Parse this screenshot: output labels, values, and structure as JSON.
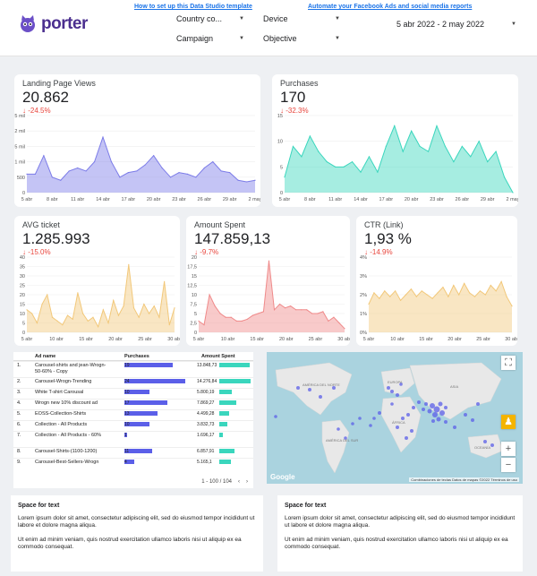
{
  "header": {
    "logo_text": "porter",
    "link_template": "How to set up this Data Studio template",
    "link_automate": "Automate your Facebook Ads and social media reports",
    "filters": [
      {
        "label": "Country co..."
      },
      {
        "label": "Campaign"
      },
      {
        "label": "Device"
      },
      {
        "label": "Objective"
      }
    ],
    "date_range": "5 abr 2022 - 2 may 2022"
  },
  "colors": {
    "purple": "#7c7ce8",
    "teal": "#3ad6bd",
    "orange": "#f2c87a",
    "red": "#ef8a8a",
    "negative": "#e8453c"
  },
  "kpis": {
    "landing": {
      "title": "Landing Page Views",
      "value": "20.862",
      "delta": "-24.5%"
    },
    "purchases": {
      "title": "Purchases",
      "value": "170",
      "delta": "-32.3%"
    },
    "avg_ticket": {
      "title": "AVG ticket",
      "value": "1.285.993",
      "delta": "-15.0%"
    },
    "amount_spent": {
      "title": "Amount Spent",
      "value": "147.859,13",
      "delta": "-9.7%"
    },
    "ctr": {
      "title": "CTR (Link)",
      "value": "1,93 %",
      "delta": "-14.9%"
    }
  },
  "chart_data": [
    {
      "type": "area",
      "series": [
        {
          "name": "Landing Page Views",
          "values": [
            600,
            600,
            1200,
            500,
            400,
            700,
            800,
            700,
            1000,
            1800,
            1000,
            500,
            650,
            700,
            900,
            1200,
            800,
            500,
            650,
            600,
            500,
            800,
            1000,
            700,
            650,
            400,
            350,
            400
          ]
        }
      ],
      "x_labels": [
        "5 abr",
        "8 abr",
        "11 abr",
        "14 abr",
        "17 abr",
        "20 abr",
        "23 abr",
        "26 abr",
        "29 abr",
        "2 may"
      ],
      "y_ticks": [
        "0",
        "500",
        "1 mil",
        "1,5 mil",
        "2 mil",
        "2,5 mil"
      ],
      "ylim": [
        0,
        2500
      ]
    },
    {
      "type": "area",
      "series": [
        {
          "name": "Purchases",
          "values": [
            3,
            9,
            7,
            11,
            8,
            6,
            5,
            5,
            6,
            4,
            7,
            4,
            9,
            13,
            8,
            12,
            9,
            8,
            13,
            9,
            6,
            9,
            7,
            10,
            6,
            8,
            3,
            0
          ]
        }
      ],
      "x_labels": [
        "5 abr",
        "8 abr",
        "11 abr",
        "14 abr",
        "17 abr",
        "20 abr",
        "23 abr",
        "26 abr",
        "29 abr",
        "2 may"
      ],
      "y_ticks": [
        "0",
        "5",
        "10",
        "15"
      ],
      "ylim": [
        0,
        15
      ]
    },
    {
      "type": "area",
      "series": [
        {
          "name": "AVG ticket",
          "values": [
            12,
            10,
            5,
            15,
            20,
            8,
            6,
            4,
            9,
            7,
            21,
            10,
            6,
            8,
            3,
            12,
            5,
            17,
            9,
            14,
            36,
            13,
            8,
            15,
            10,
            14,
            8,
            27,
            4,
            13
          ]
        }
      ],
      "x_labels": [
        "5 abr",
        "10 abr",
        "15 abr",
        "20 abr",
        "25 abr",
        "30 abr"
      ],
      "y_ticks": [
        "0",
        "5",
        "10",
        "15",
        "20",
        "25",
        "30",
        "35",
        "40"
      ],
      "ylim": [
        0,
        40
      ]
    },
    {
      "type": "area",
      "series": [
        {
          "name": "Amount Spent",
          "values": [
            3,
            2,
            10,
            7,
            5,
            4,
            4,
            3,
            3,
            3.5,
            4.5,
            5,
            5.5,
            19,
            6,
            7.5,
            6.5,
            7,
            6,
            6,
            6,
            5,
            5,
            5.5,
            3,
            4,
            2.5,
            1
          ]
        }
      ],
      "x_labels": [
        "5 abr",
        "10 abr",
        "15 abr",
        "20 abr",
        "25 abr",
        "30 abr"
      ],
      "y_ticks": [
        "0",
        "2,5",
        "5",
        "7,5",
        "10",
        "12,5",
        "15",
        "17,5",
        "20"
      ],
      "ylim": [
        0,
        20
      ]
    },
    {
      "type": "area",
      "series": [
        {
          "name": "CTR (Link)",
          "values": [
            1.5,
            2.1,
            1.8,
            2.2,
            1.9,
            2.2,
            1.7,
            2.0,
            2.3,
            1.9,
            2.2,
            2.0,
            1.8,
            2.1,
            2.4,
            1.9,
            2.5,
            2.0,
            2.6,
            2.1,
            1.9,
            2.2,
            2.0,
            2.5,
            2.2,
            2.7,
            1.9,
            1.4
          ]
        }
      ],
      "x_labels": [
        "5 abr",
        "10 abr",
        "15 abr",
        "20 abr",
        "25 abr",
        "30 abr"
      ],
      "y_ticks": [
        "0%",
        "1%",
        "2%",
        "3%",
        "4%"
      ],
      "ylim": [
        0,
        4
      ]
    },
    {
      "type": "table",
      "columns": [
        "Ad name",
        "Purchases",
        "Amount Spent"
      ],
      "rows": [
        {
          "n": "1.",
          "name": "Carousel-shirts and jean-Wrogn-50-60% - Copy",
          "purchases": 19,
          "spent": "13.848,73",
          "spent_value": 13848.73
        },
        {
          "n": "2.",
          "name": "Carousel-Wrogn-Trending",
          "purchases": 24,
          "spent": "14.276,84",
          "spent_value": 14276.84
        },
        {
          "n": "3.",
          "name": "White T-shirt Carousal",
          "purchases": 10,
          "spent": "5.800,19",
          "spent_value": 5800.19
        },
        {
          "n": "4.",
          "name": "Wrogn new 10% discount ad",
          "purchases": 17,
          "spent": "7.869,27",
          "spent_value": 7869.27
        },
        {
          "n": "5.",
          "name": "EOSS-Collection-Shirts",
          "purchases": 13,
          "spent": "4.499,28",
          "spent_value": 4499.28
        },
        {
          "n": "6.",
          "name": "Collection - All Products",
          "purchases": 10,
          "spent": "3.832,73",
          "spent_value": 3832.73
        },
        {
          "n": "7.",
          "name": "Collection - All Products - 60%",
          "purchases": 1,
          "spent": "1.696,17",
          "spent_value": 1696.17
        },
        {
          "n": "8.",
          "name": "Carousel-Shirts-(1100-1200)",
          "purchases": 11,
          "spent": "6.857,91",
          "spent_value": 6857.91
        },
        {
          "n": "9.",
          "name": "Carousel-Best-Sellers-Wrogn",
          "purchases": 4,
          "spent": "5.165,1",
          "spent_value": 5165.1
        }
      ],
      "pagination": "1 - 100 / 104"
    }
  ],
  "map": {
    "labels": [
      "AMÉRICA DEL NORTE",
      "EUROPA",
      "ASIA",
      "ÁFRICA",
      "AMÉRICA DEL SUR",
      "OCEANÍA"
    ],
    "footer": "Combinaciones de teclas   Datos de mapas ©2022   Términos de uso",
    "brand": "Google",
    "fullscreen_icon": "fullscreen-icon",
    "pegman_icon": "pegman-icon",
    "zoom_in": "+",
    "zoom_out": "−"
  },
  "text_blocks": [
    {
      "title": "Space for text",
      "p1": "Lorem ipsum dolor sit amet, consectetur adipiscing elit, sed do eiusmod tempor incididunt ut labore et dolore magna aliqua.",
      "p2": "Ut enim ad minim veniam, quis nostrud exercitation ullamco laboris nisi ut aliquip ex ea commodo consequat."
    },
    {
      "title": "Space for text",
      "p1": "Lorem ipsum dolor sit amet, consectetur adipiscing elit, sed do eiusmod tempor incididunt ut labore et dolore magna aliqua.",
      "p2": "Ut enim ad minim veniam, quis nostrud exercitation ullamco laboris nisi ut aliquip ex ea commodo consequat."
    }
  ]
}
